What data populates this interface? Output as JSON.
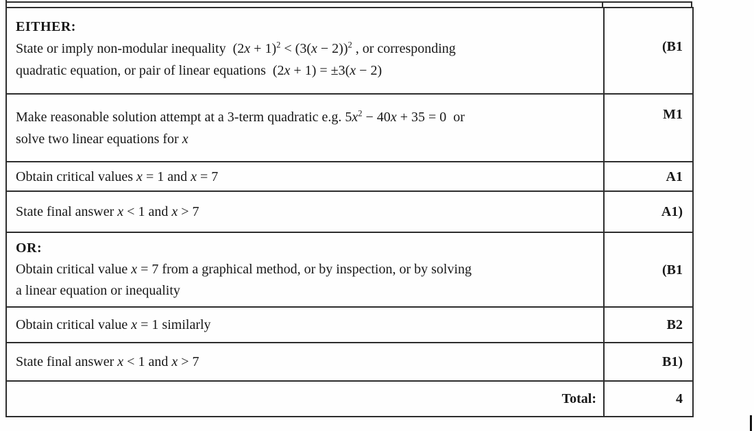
{
  "document": {
    "colors": {
      "border": "#2d2d2d",
      "text": "#181818",
      "background": "#ffffff"
    },
    "rows": [
      {
        "mark": "(B1",
        "lines": [
          [
            {
              "k": "b",
              "x": "EITHER:"
            }
          ],
          [
            {
              "k": "t",
              "x": "State or imply non-modular inequality  (2"
            },
            {
              "k": "v",
              "x": "x"
            },
            {
              "k": "t",
              "x": " + 1)"
            },
            {
              "k": "sup",
              "x": "2"
            },
            {
              "k": "t",
              "x": " < (3("
            },
            {
              "k": "v",
              "x": "x"
            },
            {
              "k": "t",
              "x": " − 2))"
            },
            {
              "k": "sup",
              "x": "2"
            },
            {
              "k": "t",
              "x": " , or corresponding"
            }
          ],
          [
            {
              "k": "t",
              "x": "quadratic equation, or pair of linear equations  (2"
            },
            {
              "k": "v",
              "x": "x"
            },
            {
              "k": "t",
              "x": " + 1) = ±3("
            },
            {
              "k": "v",
              "x": "x"
            },
            {
              "k": "t",
              "x": " − 2)"
            }
          ]
        ]
      },
      {
        "mark": "M1",
        "lines": [
          [
            {
              "k": "t",
              "x": "Make reasonable solution attempt at a 3-term quadratic e.g. 5"
            },
            {
              "k": "v",
              "x": "x"
            },
            {
              "k": "sup",
              "x": "2"
            },
            {
              "k": "t",
              "x": " − 40"
            },
            {
              "k": "v",
              "x": "x"
            },
            {
              "k": "t",
              "x": " + 35 = 0  or"
            }
          ],
          [
            {
              "k": "t",
              "x": "solve two linear equations for "
            },
            {
              "k": "v",
              "x": "x"
            }
          ]
        ]
      },
      {
        "mark": "A1",
        "lines": [
          [
            {
              "k": "t",
              "x": "Obtain critical values "
            },
            {
              "k": "v",
              "x": "x"
            },
            {
              "k": "t",
              "x": " = 1 and "
            },
            {
              "k": "v",
              "x": "x"
            },
            {
              "k": "t",
              "x": " = 7"
            }
          ]
        ]
      },
      {
        "mark": "A1)",
        "lines": [
          [
            {
              "k": "t",
              "x": "State final answer "
            },
            {
              "k": "v",
              "x": "x"
            },
            {
              "k": "t",
              "x": " < 1 and "
            },
            {
              "k": "v",
              "x": "x"
            },
            {
              "k": "t",
              "x": " > 7"
            }
          ]
        ]
      },
      {
        "mark": "(B1",
        "lines": [
          [
            {
              "k": "b",
              "x": "OR:"
            }
          ],
          [
            {
              "k": "t",
              "x": "Obtain critical value "
            },
            {
              "k": "v",
              "x": "x"
            },
            {
              "k": "t",
              "x": " = 7 from a graphical method, or by inspection, or by solving"
            }
          ],
          [
            {
              "k": "t",
              "x": "a linear equation or inequality"
            }
          ]
        ]
      },
      {
        "mark": "B2",
        "lines": [
          [
            {
              "k": "t",
              "x": "Obtain critical value "
            },
            {
              "k": "v",
              "x": "x"
            },
            {
              "k": "t",
              "x": " = 1 similarly"
            }
          ]
        ]
      },
      {
        "mark": "B1)",
        "lines": [
          [
            {
              "k": "t",
              "x": "State final answer "
            },
            {
              "k": "v",
              "x": "x"
            },
            {
              "k": "t",
              "x": " < 1 and "
            },
            {
              "k": "v",
              "x": "x"
            },
            {
              "k": "t",
              "x": " > 7"
            }
          ]
        ]
      }
    ],
    "total": {
      "label": "Total:",
      "value": "4"
    }
  }
}
